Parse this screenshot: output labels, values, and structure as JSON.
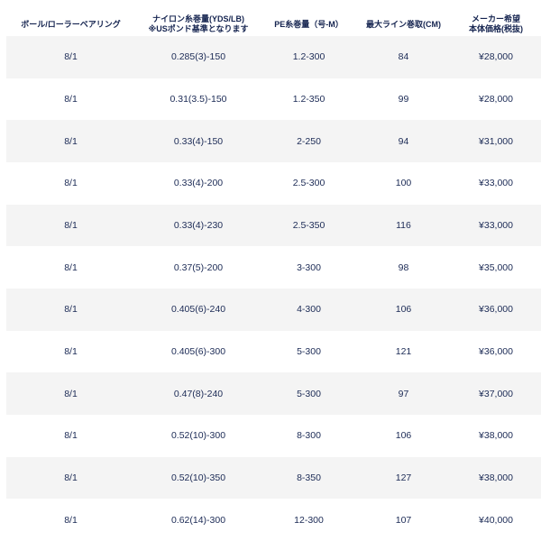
{
  "table": {
    "headers": [
      {
        "line1": "ボール/ローラーベアリング",
        "line2": ""
      },
      {
        "line1": "ナイロン糸巻量(YDS/LB)",
        "line2": "※USポンド基準となります"
      },
      {
        "line1": "PE糸巻量（号-M）",
        "line2": ""
      },
      {
        "line1": "最大ライン巻取(CM)",
        "line2": ""
      },
      {
        "line1": "メーカー希望",
        "line2": "本体価格(税抜)"
      }
    ],
    "rows": [
      [
        "8/1",
        "0.285(3)-150",
        "1.2-300",
        "84",
        "¥28,000"
      ],
      [
        "8/1",
        "0.31(3.5)-150",
        "1.2-350",
        "99",
        "¥28,000"
      ],
      [
        "8/1",
        "0.33(4)-150",
        "2-250",
        "94",
        "¥31,000"
      ],
      [
        "8/1",
        "0.33(4)-200",
        "2.5-300",
        "100",
        "¥33,000"
      ],
      [
        "8/1",
        "0.33(4)-230",
        "2.5-350",
        "116",
        "¥33,000"
      ],
      [
        "8/1",
        "0.37(5)-200",
        "3-300",
        "98",
        "¥35,000"
      ],
      [
        "8/1",
        "0.405(6)-240",
        "4-300",
        "106",
        "¥36,000"
      ],
      [
        "8/1",
        "0.405(6)-300",
        "5-300",
        "121",
        "¥36,000"
      ],
      [
        "8/1",
        "0.47(8)-240",
        "5-300",
        "97",
        "¥37,000"
      ],
      [
        "8/1",
        "0.52(10)-300",
        "8-300",
        "106",
        "¥38,000"
      ],
      [
        "8/1",
        "0.52(10)-350",
        "8-350",
        "127",
        "¥38,000"
      ],
      [
        "8/1",
        "0.62(14)-300",
        "12-300",
        "107",
        "¥40,000"
      ]
    ]
  },
  "colors": {
    "text": "#1b2a55",
    "stripe": "#f4f4f4"
  }
}
